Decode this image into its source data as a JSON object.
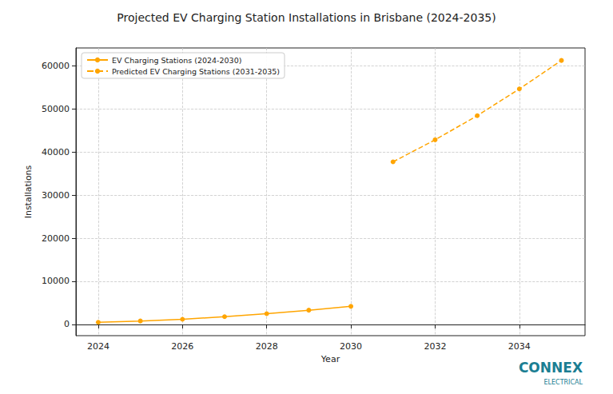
{
  "chart_data": {
    "type": "line",
    "title": "Projected EV Charging Station Installations in Brisbane (2024-2035)",
    "x_label": "Year",
    "y_label": "Installations",
    "x": [
      2024,
      2025,
      2026,
      2027,
      2028,
      2029,
      2030,
      2031,
      2032,
      2033,
      2034,
      2035
    ],
    "series": [
      {
        "name": "EV Charging Stations (2024-2030)",
        "color": "#FFA500",
        "line_style": "solid",
        "marker": "circle",
        "values": [
          500,
          800,
          1200,
          1800,
          2500,
          3300,
          4200,
          null,
          null,
          null,
          null,
          null
        ]
      },
      {
        "name": "Predicted EV Charging Stations (2031-2035)",
        "color": "#FFA500",
        "line_style": "dashed",
        "marker": "circle",
        "values": [
          null,
          null,
          null,
          null,
          null,
          null,
          null,
          37700,
          42800,
          48400,
          54600,
          61200
        ]
      }
    ],
    "xlim": [
      2023.47,
      2035.56
    ],
    "xticks": [
      2024,
      2026,
      2028,
      2030,
      2032,
      2034
    ],
    "ylim": [
      -2600,
      64100
    ],
    "yticks": [
      0,
      10000,
      20000,
      30000,
      40000,
      50000,
      60000
    ],
    "grid": true,
    "legend": "upper left",
    "annotations": [
      "CONNEX",
      "ELECTRICAL"
    ]
  }
}
